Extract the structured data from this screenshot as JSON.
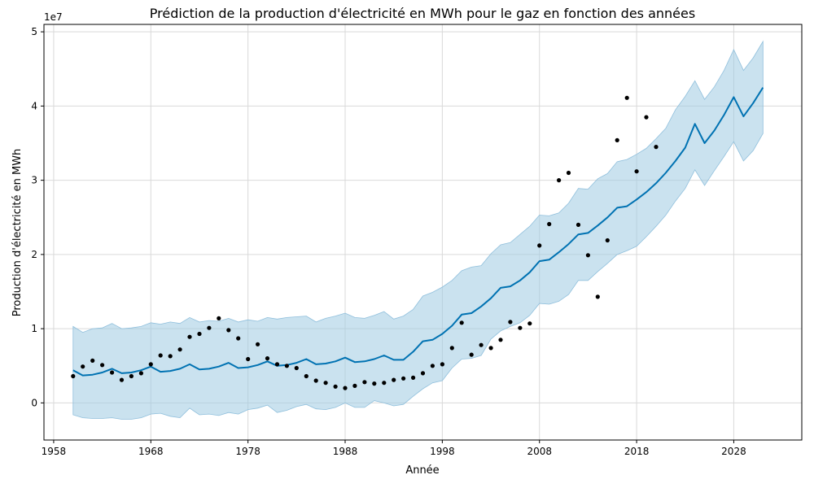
{
  "chart_data": {
    "type": "line",
    "title": "Prédiction de la production d'électricité en MWh pour le gaz en fonction des années",
    "xlabel": "Année",
    "ylabel": "Production d'électricité en MWh",
    "y_offset_label": "1e7",
    "xlim": [
      1957,
      2035
    ],
    "ylim": [
      -5000000,
      51000000
    ],
    "x_ticks": [
      1958,
      1968,
      1978,
      1988,
      1998,
      2008,
      2018,
      2028
    ],
    "y_ticks": [
      {
        "value": 0,
        "label": "0"
      },
      {
        "value": 10000000,
        "label": "1"
      },
      {
        "value": 20000000,
        "label": "2"
      },
      {
        "value": 30000000,
        "label": "3"
      },
      {
        "value": 40000000,
        "label": "4"
      },
      {
        "value": 50000000,
        "label": "5"
      }
    ],
    "grid": true,
    "colors": {
      "forecast": "#0072B2",
      "interval": "#9ecae1",
      "observed": "#000000"
    },
    "series": [
      {
        "kind": "observed-points",
        "x": [
          1960,
          1961,
          1962,
          1963,
          1964,
          1965,
          1966,
          1967,
          1968,
          1969,
          1970,
          1971,
          1972,
          1973,
          1974,
          1975,
          1976,
          1977,
          1978,
          1979,
          1980,
          1981,
          1982,
          1983,
          1984,
          1985,
          1986,
          1987,
          1988,
          1989,
          1990,
          1991,
          1992,
          1993,
          1994,
          1995,
          1996,
          1997,
          1998,
          1999,
          2000,
          2001,
          2002,
          2003,
          2004,
          2005,
          2006,
          2007,
          2008,
          2009,
          2010,
          2011,
          2012,
          2013,
          2014,
          2015,
          2016,
          2017,
          2018,
          2019,
          2020
        ],
        "y": [
          3600000,
          4900000,
          5700000,
          5100000,
          4100000,
          3100000,
          3600000,
          4000000,
          5200000,
          6400000,
          6300000,
          7200000,
          8900000,
          9300000,
          10100000,
          11400000,
          9800000,
          8700000,
          5900000,
          7900000,
          6000000,
          5200000,
          5000000,
          4700000,
          3600000,
          3000000,
          2700000,
          2200000,
          2000000,
          2300000,
          2800000,
          2600000,
          2700000,
          3100000,
          3300000,
          3400000,
          4000000,
          5000000,
          5200000,
          7400000,
          10800000,
          6500000,
          7800000,
          7400000,
          8500000,
          10900000,
          10100000,
          10700000,
          21200000,
          24100000,
          30000000,
          31000000,
          24000000,
          19900000,
          14300000,
          21900000,
          35400000,
          41100000,
          31200000,
          38500000,
          34500000
        ]
      },
      {
        "kind": "forecast",
        "x": [
          1960,
          1961,
          1962,
          1963,
          1964,
          1965,
          1966,
          1967,
          1968,
          1969,
          1970,
          1971,
          1972,
          1973,
          1974,
          1975,
          1976,
          1977,
          1978,
          1979,
          1980,
          1981,
          1982,
          1983,
          1984,
          1985,
          1986,
          1987,
          1988,
          1989,
          1990,
          1991,
          1992,
          1993,
          1994,
          1995,
          1996,
          1997,
          1998,
          1999,
          2000,
          2001,
          2002,
          2003,
          2004,
          2005,
          2006,
          2007,
          2008,
          2009,
          2010,
          2011,
          2012,
          2013,
          2014,
          2015,
          2016,
          2017,
          2018,
          2019,
          2020,
          2021,
          2022,
          2023,
          2024,
          2025,
          2026,
          2027,
          2028,
          2029,
          2030,
          2031
        ],
        "y": [
          4400000,
          3700000,
          3800000,
          4100000,
          4600000,
          4000000,
          4100000,
          4400000,
          4900000,
          4200000,
          4300000,
          4600000,
          5200000,
          4500000,
          4600000,
          4900000,
          5400000,
          4700000,
          4800000,
          5100000,
          5600000,
          5000000,
          5100000,
          5400000,
          5900000,
          5200000,
          5300000,
          5600000,
          6100000,
          5500000,
          5600000,
          5900000,
          6400000,
          5800000,
          5800000,
          6900000,
          8300000,
          8500000,
          9300000,
          10400000,
          11900000,
          12100000,
          13000000,
          14100000,
          15500000,
          15700000,
          16500000,
          17600000,
          19100000,
          19300000,
          20300000,
          21400000,
          22700000,
          22900000,
          23900000,
          25000000,
          26300000,
          26500000,
          27400000,
          28400000,
          29600000,
          31000000,
          32600000,
          34400000,
          37600000,
          35000000,
          36700000,
          38800000,
          41200000,
          38600000,
          40400000,
          42500000
        ]
      },
      {
        "kind": "interval",
        "x": [
          1960,
          1961,
          1962,
          1963,
          1964,
          1965,
          1966,
          1967,
          1968,
          1969,
          1970,
          1971,
          1972,
          1973,
          1974,
          1975,
          1976,
          1977,
          1978,
          1979,
          1980,
          1981,
          1982,
          1983,
          1984,
          1985,
          1986,
          1987,
          1988,
          1989,
          1990,
          1991,
          1992,
          1993,
          1994,
          1995,
          1996,
          1997,
          1998,
          1999,
          2000,
          2001,
          2002,
          2003,
          2004,
          2005,
          2006,
          2007,
          2008,
          2009,
          2010,
          2011,
          2012,
          2013,
          2014,
          2015,
          2016,
          2017,
          2018,
          2019,
          2020,
          2021,
          2022,
          2023,
          2024,
          2025,
          2026,
          2027,
          2028,
          2029,
          2030,
          2031
        ],
        "upper": [
          10300000,
          9500000,
          10000000,
          10100000,
          10700000,
          10000000,
          10100000,
          10300000,
          10800000,
          10600000,
          10900000,
          10700000,
          11500000,
          10900000,
          11100000,
          11000000,
          11400000,
          10900000,
          11200000,
          11000000,
          11500000,
          11300000,
          11500000,
          11600000,
          11700000,
          10900000,
          11400000,
          11700000,
          12100000,
          11500000,
          11400000,
          11800000,
          12300000,
          11300000,
          11700000,
          12600000,
          14400000,
          14900000,
          15600000,
          16500000,
          17800000,
          18300000,
          18500000,
          20100000,
          21300000,
          21600000,
          22700000,
          23800000,
          25300000,
          25200000,
          25600000,
          26900000,
          28900000,
          28800000,
          30200000,
          30900000,
          32500000,
          32800000,
          33500000,
          34300000,
          35600000,
          37000000,
          39500000,
          41300000,
          43400000,
          40900000,
          42600000,
          44800000,
          47600000,
          44800000,
          46500000,
          48700000
        ],
        "lower": [
          -1600000,
          -2000000,
          -2100000,
          -2100000,
          -2000000,
          -2200000,
          -2200000,
          -2000000,
          -1500000,
          -1400000,
          -1800000,
          -2000000,
          -700000,
          -1600000,
          -1500000,
          -1700000,
          -1300000,
          -1500000,
          -900000,
          -700000,
          -300000,
          -1300000,
          -1000000,
          -500000,
          -200000,
          -800000,
          -900000,
          -600000,
          0,
          -600000,
          -600000,
          300000,
          0,
          -400000,
          -200000,
          900000,
          1900000,
          2700000,
          3000000,
          4700000,
          5900000,
          6000000,
          6400000,
          8600000,
          9700000,
          10300000,
          10800000,
          11800000,
          13400000,
          13300000,
          13700000,
          14600000,
          16500000,
          16500000,
          17700000,
          18800000,
          20000000,
          20500000,
          21100000,
          22400000,
          23800000,
          25300000,
          27200000,
          28900000,
          31400000,
          29300000,
          31300000,
          33200000,
          35200000,
          32600000,
          34000000,
          36300000
        ]
      }
    ]
  }
}
